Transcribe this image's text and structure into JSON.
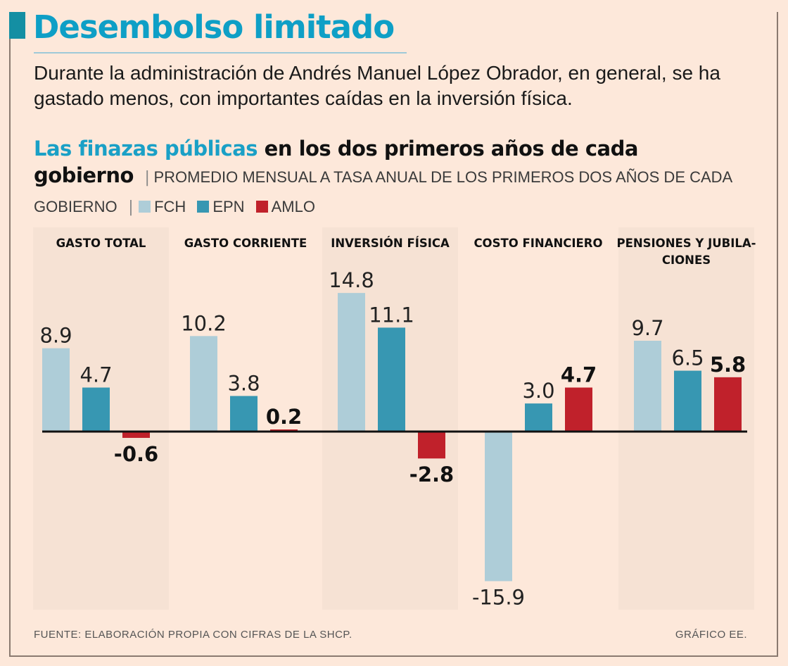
{
  "header": {
    "title": "Desembolso limitado",
    "dek": "Durante la administración de Andrés Manuel López Obrador, en general, se ha gastado menos, con importantes caídas en la inversión física.",
    "subhead_accent": "Las finazas públicas",
    "subhead_rest": " en los dos primeros años de cada gobierno",
    "subhead_note": "PROMEDIO MENSUAL A TASA ANUAL DE LOS PRIMEROS DOS AÑOS DE CADA GOBIERNO",
    "separator": "|"
  },
  "colors": {
    "title": "#0e9fc6",
    "FCH": "#aecdd8",
    "EPN": "#3797b2",
    "AMLO": "#c0212b",
    "background": "#fde8da",
    "panel_shade": "#f6e2d4"
  },
  "chart_data": {
    "type": "bar",
    "title": "Las finazas públicas en los dos primeros años de cada gobierno",
    "subtitle": "Promedio mensual a tasa anual de los primeros dos años de cada gobierno",
    "categories": [
      "GASTO TOTAL",
      "GASTO CORRIENTE",
      "INVERSIÓN FÍSICA",
      "COSTO FINANCIERO",
      "PENSIONES Y JUBILACIONES"
    ],
    "category_display": [
      [
        "GASTO TOTAL"
      ],
      [
        "GASTO CORRIENTE"
      ],
      [
        "INVERSIÓN FÍSICA"
      ],
      [
        "COSTO FINANCIERO"
      ],
      [
        "PENSIONES Y JUBILA-",
        "CIONES"
      ]
    ],
    "series": [
      {
        "name": "FCH",
        "values": [
          8.9,
          10.2,
          14.8,
          -15.9,
          9.7
        ],
        "labels": [
          "8.9",
          "10.2",
          "14.8",
          "-15.9",
          "9.7"
        ]
      },
      {
        "name": "EPN",
        "values": [
          4.7,
          3.8,
          11.1,
          3.0,
          6.5
        ],
        "labels": [
          "4.7",
          "3.8",
          "11.1",
          "3.0",
          "6.5"
        ]
      },
      {
        "name": "AMLO",
        "values": [
          -0.6,
          0.2,
          -2.8,
          4.7,
          5.8
        ],
        "labels": [
          "-0.6",
          "0.2",
          "-2.8",
          "4.7",
          "5.8"
        ]
      }
    ],
    "xlabel": "",
    "ylabel": "",
    "ylim": [
      -17,
      18
    ],
    "grid": false,
    "legend": "top-left",
    "bold_series": "AMLO"
  },
  "footer": {
    "source": "FUENTE: ELABORACIÓN PROPIA CON CIFRAS DE LA SHCP.",
    "credit": "GRÁFICO EE."
  }
}
